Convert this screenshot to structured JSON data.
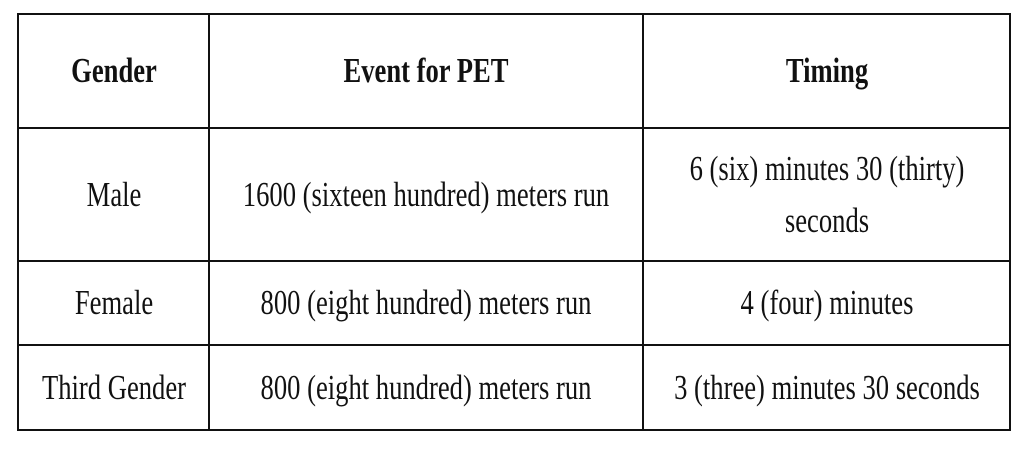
{
  "table": {
    "header": [
      "Gender",
      "Event for PET",
      "Timing"
    ],
    "rows": [
      [
        "Male",
        "1600 (sixteen hundred) meters run",
        "6 (six) minutes 30 (thirty) seconds"
      ],
      [
        "Female",
        "800 (eight hundred) meters run",
        "4 (four) minutes"
      ],
      [
        "Third Gender",
        "800 (eight hundred) meters run",
        "3 (three) minutes 30 seconds"
      ]
    ]
  }
}
